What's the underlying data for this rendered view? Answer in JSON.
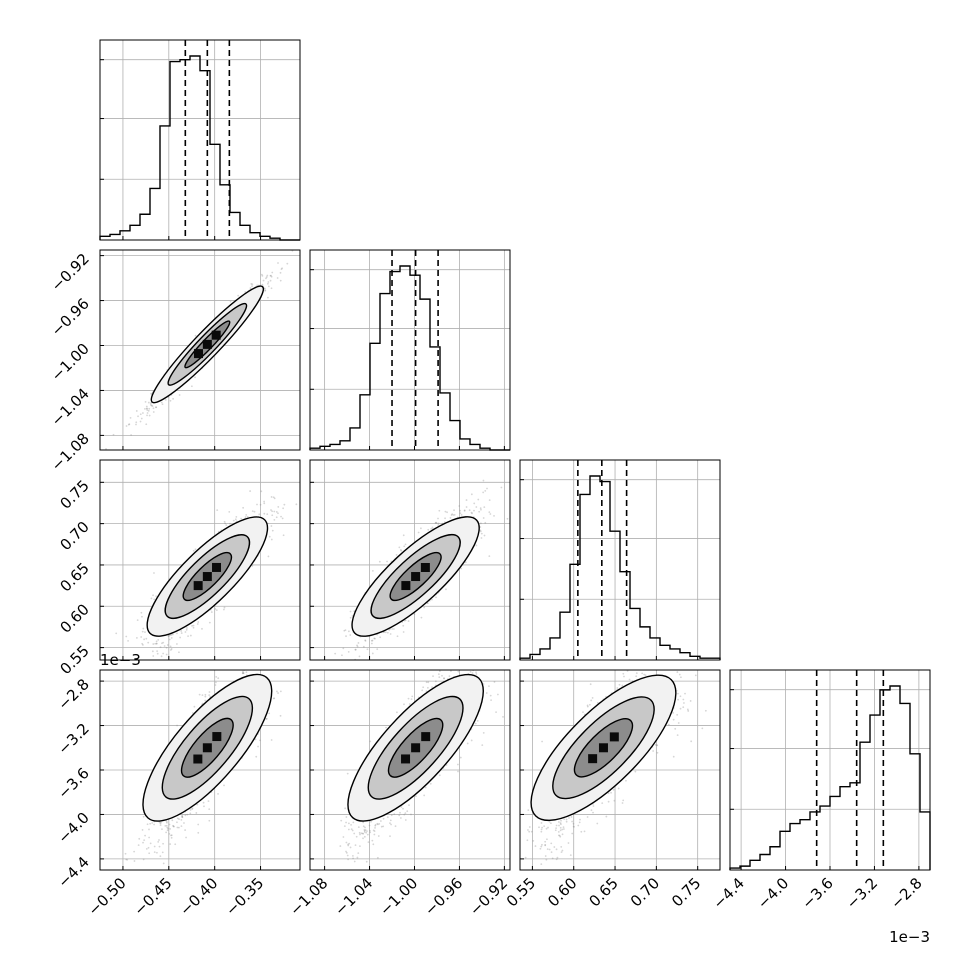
{
  "chart_data": {
    "type": "corner",
    "grid": true,
    "parameters": [
      {
        "ticks": [
          -0.5,
          -0.45,
          -0.4,
          -0.35
        ],
        "tick_labels": [
          "−0.50",
          "−0.45",
          "−0.40",
          "−0.35"
        ],
        "range": [
          -0.525,
          -0.307
        ],
        "quantiles": [
          -0.432,
          -0.408,
          -0.384
        ],
        "hist_counts": [
          2,
          3,
          5,
          8,
          14,
          28,
          62,
          97,
          98,
          100,
          92,
          52,
          30,
          15,
          8,
          4,
          2,
          1,
          0,
          0
        ],
        "hist_yticks": [
          0.33,
          0.66,
          0.98
        ]
      },
      {
        "ticks": [
          -1.08,
          -1.04,
          -1.0,
          -0.96,
          -0.92
        ],
        "tick_labels": [
          "−1.08",
          "−1.04",
          "−1.00",
          "−0.96",
          "−0.92"
        ],
        "range": [
          -1.093,
          -0.915
        ],
        "quantiles": [
          -1.02,
          -0.999,
          -0.979
        ],
        "hist_counts": [
          1,
          2,
          3,
          5,
          12,
          30,
          58,
          85,
          97,
          100,
          95,
          82,
          56,
          31,
          16,
          6,
          3,
          1,
          0,
          0
        ],
        "hist_yticks": [
          0.33,
          0.66,
          0.98
        ]
      },
      {
        "ticks": [
          0.55,
          0.6,
          0.65,
          0.7,
          0.75
        ],
        "tick_labels": [
          "0.55",
          "0.60",
          "0.65",
          "0.70",
          "0.75"
        ],
        "range": [
          0.535,
          0.777
        ],
        "quantiles": [
          0.605,
          0.634,
          0.664
        ],
        "hist_counts": [
          1,
          3,
          6,
          12,
          26,
          52,
          90,
          100,
          97,
          70,
          48,
          28,
          18,
          12,
          8,
          6,
          4,
          2,
          1,
          1
        ],
        "hist_yticks": [
          0.33,
          0.66,
          0.98
        ]
      },
      {
        "ticks": [
          -4.4,
          -4.0,
          -3.6,
          -3.2,
          -2.8
        ],
        "tick_labels": [
          "−4.4",
          "−4.0",
          "−3.6",
          "−3.2",
          "−2.8"
        ],
        "range": [
          -4.5,
          -2.7
        ],
        "quantiles": [
          -3.72,
          -3.36,
          -3.12
        ],
        "offset_label": "1e−3",
        "hist_counts": [
          1,
          2,
          5,
          8,
          12,
          20,
          24,
          26,
          30,
          33,
          38,
          43,
          45,
          66,
          80,
          93,
          95,
          86,
          60,
          30
        ],
        "hist_yticks": [
          0.33,
          0.66,
          0.98
        ]
      }
    ],
    "correlations": [
      {
        "x": 0,
        "y": 1,
        "r": 0.975,
        "mean": [
          -0.408,
          -0.999
        ],
        "sd": [
          0.0235,
          0.0205
        ]
      },
      {
        "x": 0,
        "y": 2,
        "r": 0.86,
        "mean": [
          -0.408,
          0.636
        ],
        "sd": [
          0.0235,
          0.03
        ]
      },
      {
        "x": 1,
        "y": 2,
        "r": 0.86,
        "mean": [
          -0.999,
          0.636
        ],
        "sd": [
          0.0205,
          0.03
        ]
      },
      {
        "x": 0,
        "y": 3,
        "r": 0.82,
        "mean": [
          -0.408,
          -3.4
        ],
        "sd": [
          0.0235,
          0.28
        ]
      },
      {
        "x": 1,
        "y": 3,
        "r": 0.82,
        "mean": [
          -0.999,
          -3.4
        ],
        "sd": [
          0.0205,
          0.28
        ]
      },
      {
        "x": 2,
        "y": 3,
        "r": 0.8,
        "mean": [
          0.636,
          -3.4
        ],
        "sd": [
          0.03,
          0.28
        ]
      }
    ]
  }
}
